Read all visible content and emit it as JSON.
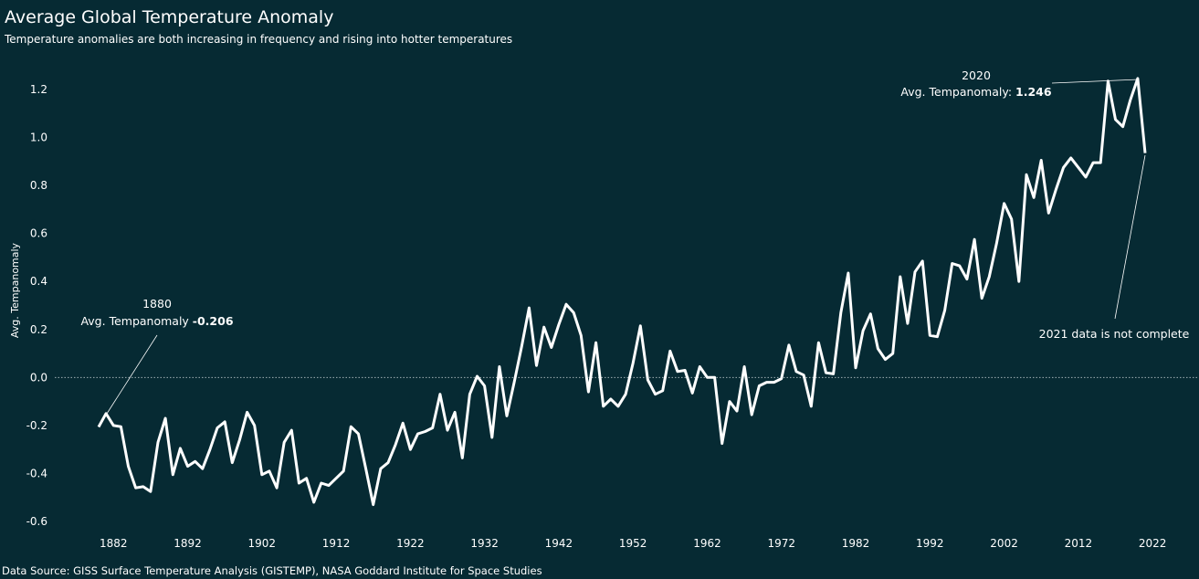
{
  "header": {
    "title": "Average Global Temperature Anomaly",
    "subtitle": "Temperature anomalies are both increasing in frequency and rising into hotter temperatures"
  },
  "footer": {
    "source": "Data Source: GISS Surface Temperature Analysis (GISTEMP), NASA Goddard Institute for Space Studies"
  },
  "colors": {
    "background": "#062a33",
    "line": "#ffffff",
    "zero_line": "#9fb1b5"
  },
  "annotations": {
    "first": {
      "year": "1880",
      "label": "Avg. Tempanomaly ",
      "value": "-0.206"
    },
    "peak": {
      "year": "2020",
      "label": "Avg. Tempanomaly: ",
      "value": "1.246"
    },
    "note": "2021 data is not complete"
  },
  "chart_data": {
    "type": "line",
    "title": "Average Global Temperature Anomaly",
    "xlabel": "",
    "ylabel": "Avg. Tempanomaly",
    "xlim": [
      1877,
      2024
    ],
    "ylim": [
      -0.65,
      1.3
    ],
    "x_ticks": [
      "1882",
      "1892",
      "1902",
      "1912",
      "1922",
      "1932",
      "1942",
      "1952",
      "1962",
      "1972",
      "1982",
      "1992",
      "2002",
      "2012",
      "2022"
    ],
    "y_ticks": [
      "-0.6",
      "-0.4",
      "-0.2",
      "0.0",
      "0.2",
      "0.4",
      "0.6",
      "0.8",
      "1.0",
      "1.2"
    ],
    "grid": false,
    "zero_reference_line": true,
    "x": [
      1880,
      1881,
      1882,
      1883,
      1884,
      1885,
      1886,
      1887,
      1888,
      1889,
      1890,
      1891,
      1892,
      1893,
      1894,
      1895,
      1896,
      1897,
      1898,
      1899,
      1900,
      1901,
      1902,
      1903,
      1904,
      1905,
      1906,
      1907,
      1908,
      1909,
      1910,
      1911,
      1912,
      1913,
      1914,
      1915,
      1916,
      1917,
      1918,
      1919,
      1920,
      1921,
      1922,
      1923,
      1924,
      1925,
      1926,
      1927,
      1928,
      1929,
      1930,
      1931,
      1932,
      1933,
      1934,
      1935,
      1936,
      1937,
      1938,
      1939,
      1940,
      1941,
      1942,
      1943,
      1944,
      1945,
      1946,
      1947,
      1948,
      1949,
      1950,
      1951,
      1952,
      1953,
      1954,
      1955,
      1956,
      1957,
      1958,
      1959,
      1960,
      1961,
      1962,
      1963,
      1964,
      1965,
      1966,
      1967,
      1968,
      1969,
      1970,
      1971,
      1972,
      1973,
      1974,
      1975,
      1976,
      1977,
      1978,
      1979,
      1980,
      1981,
      1982,
      1983,
      1984,
      1985,
      1986,
      1987,
      1988,
      1989,
      1990,
      1991,
      1992,
      1993,
      1994,
      1995,
      1996,
      1997,
      1998,
      1999,
      2000,
      2001,
      2002,
      2003,
      2004,
      2005,
      2006,
      2007,
      2008,
      2009,
      2010,
      2011,
      2012,
      2013,
      2014,
      2015,
      2016,
      2017,
      2018,
      2019,
      2020,
      2021
    ],
    "y": [
      -0.206,
      -0.15,
      -0.2,
      -0.205,
      -0.37,
      -0.46,
      -0.455,
      -0.475,
      -0.27,
      -0.17,
      -0.405,
      -0.295,
      -0.37,
      -0.35,
      -0.38,
      -0.3,
      -0.21,
      -0.185,
      -0.355,
      -0.26,
      -0.145,
      -0.2,
      -0.405,
      -0.39,
      -0.46,
      -0.27,
      -0.22,
      -0.44,
      -0.42,
      -0.52,
      -0.44,
      -0.45,
      -0.42,
      -0.39,
      -0.205,
      -0.235,
      -0.38,
      -0.53,
      -0.38,
      -0.355,
      -0.28,
      -0.19,
      -0.3,
      -0.235,
      -0.225,
      -0.21,
      -0.07,
      -0.22,
      -0.145,
      -0.335,
      -0.07,
      0.005,
      -0.035,
      -0.25,
      0.045,
      -0.16,
      -0.02,
      0.13,
      0.29,
      0.05,
      0.21,
      0.125,
      0.22,
      0.305,
      0.27,
      0.175,
      -0.06,
      0.145,
      -0.12,
      -0.09,
      -0.12,
      -0.07,
      0.06,
      0.215,
      -0.01,
      -0.07,
      -0.055,
      0.11,
      0.025,
      0.03,
      -0.065,
      0.045,
      0.0,
      0.0,
      -0.275,
      -0.1,
      -0.14,
      0.045,
      -0.155,
      -0.035,
      -0.02,
      -0.02,
      -0.005,
      0.135,
      0.025,
      0.01,
      -0.12,
      0.145,
      0.02,
      0.015,
      0.27,
      0.435,
      0.04,
      0.195,
      0.265,
      0.12,
      0.075,
      0.1,
      0.42,
      0.225,
      0.44,
      0.485,
      0.175,
      0.17,
      0.28,
      0.475,
      0.465,
      0.41,
      0.575,
      0.33,
      0.42,
      0.56,
      0.725,
      0.66,
      0.4,
      0.845,
      0.75,
      0.905,
      0.685,
      0.785,
      0.875,
      0.915,
      0.875,
      0.835,
      0.895,
      0.895,
      1.235,
      1.075,
      1.045,
      1.155,
      1.246,
      0.935
    ]
  }
}
